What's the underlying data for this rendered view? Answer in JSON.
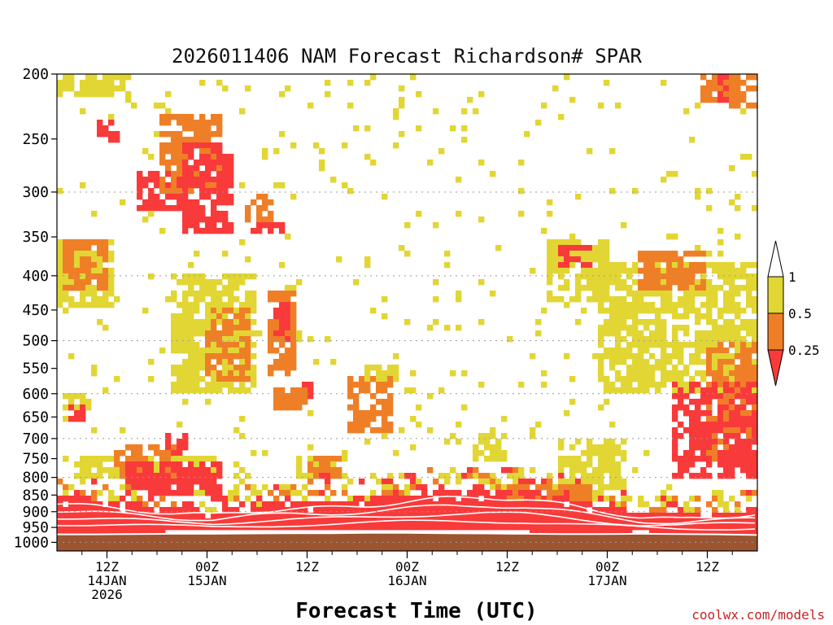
{
  "chart_data": {
    "type": "heatmap",
    "title": "2026011406 NAM Forecast Richardson# SPAR",
    "xlabel": "Forecast Time (UTC)",
    "ylabel": "",
    "y_axis": {
      "scale": "log-pressure",
      "units": "hPa",
      "range": [
        1030,
        200
      ],
      "ticks": [
        "200",
        "250",
        "300",
        "350",
        "400",
        "450",
        "500",
        "550",
        "600",
        "650",
        "700",
        "750",
        "800",
        "850",
        "900",
        "950",
        "1000"
      ],
      "gridlines": [
        "300",
        "400",
        "500",
        "600",
        "700",
        "800",
        "900",
        "1000"
      ]
    },
    "x_axis": {
      "range_hours": [
        0,
        84
      ],
      "ticks": [
        {
          "hour": 6,
          "line1": "12Z",
          "line2": "14JAN",
          "line3": "2026"
        },
        {
          "hour": 18,
          "line1": "00Z",
          "line2": "15JAN",
          "line3": ""
        },
        {
          "hour": 30,
          "line1": "12Z",
          "line2": "",
          "line3": ""
        },
        {
          "hour": 42,
          "line1": "00Z",
          "line2": "16JAN",
          "line3": ""
        },
        {
          "hour": 54,
          "line1": "12Z",
          "line2": "",
          "line3": ""
        },
        {
          "hour": 66,
          "line1": "00Z",
          "line2": "17JAN",
          "line3": ""
        },
        {
          "hour": 78,
          "line1": "12Z",
          "line2": "",
          "line3": ""
        }
      ]
    },
    "legend": {
      "position": "right",
      "levels": [
        "1",
        "0.5",
        "0.25"
      ],
      "bins": [
        {
          "range": "> 1",
          "color": "#ffffff"
        },
        {
          "range": "0.5 - 1",
          "color": "#e1d634"
        },
        {
          "range": "0.25 - 0.5",
          "color": "#ef7f27"
        },
        {
          "range": "< 0.25",
          "color": "#f93a3a"
        }
      ]
    },
    "ground_color": "#9c5530",
    "ground_top_hpa": [
      973,
      973,
      972,
      971,
      971,
      970,
      969,
      969,
      968,
      968,
      969,
      970,
      971,
      972,
      972,
      971,
      972,
      973,
      975
    ],
    "low_ri_top_hpa": [
      852,
      862,
      875,
      890,
      895,
      880,
      872,
      868,
      860,
      845,
      832,
      828,
      835,
      855,
      880,
      905,
      912,
      902,
      890
    ],
    "features": [
      {
        "p": [
          200,
          215
        ],
        "h": [
          0,
          8
        ],
        "ri": 0.75
      },
      {
        "p": [
          232,
          255
        ],
        "h": [
          4.5,
          7.5
        ],
        "ri": 0.1
      },
      {
        "p": [
          280,
          320
        ],
        "h": [
          9.5,
          16
        ],
        "ri": 0.1
      },
      {
        "p": [
          255,
          345
        ],
        "h": [
          15,
          21
        ],
        "ri": 0.1
      },
      {
        "p": [
          230,
          300
        ],
        "h": [
          12,
          20
        ],
        "ri": 0.4
      },
      {
        "p": [
          300,
          330
        ],
        "h": [
          22.5,
          26
        ],
        "ri": 0.4
      },
      {
        "p": [
          330,
          345
        ],
        "h": [
          23,
          27
        ],
        "ri": 0.1
      },
      {
        "p": [
          350,
          420
        ],
        "h": [
          0.5,
          6
        ],
        "ri": 0.4
      },
      {
        "p": [
          350,
          450
        ],
        "h": [
          0.2,
          7
        ],
        "ri": 0.75
      },
      {
        "p": [
          450,
          580
        ],
        "h": [
          18,
          23
        ],
        "ri": 0.4
      },
      {
        "p": [
          420,
          560
        ],
        "h": [
          25,
          29
        ],
        "ri": 0.4
      },
      {
        "p": [
          440,
          500
        ],
        "h": [
          26,
          28
        ],
        "ri": 0.1
      },
      {
        "p": [
          400,
          600
        ],
        "h": [
          14,
          24
        ],
        "ri": 0.75
      },
      {
        "p": [
          560,
          680
        ],
        "h": [
          35,
          40
        ],
        "ri": 0.4
      },
      {
        "p": [
          540,
          580
        ],
        "h": [
          37,
          41
        ],
        "ri": 0.75
      },
      {
        "p": [
          590,
          640
        ],
        "h": [
          26,
          30
        ],
        "ri": 0.4
      },
      {
        "p": [
          580,
          620
        ],
        "h": [
          29.5,
          31
        ],
        "ri": 0.1
      },
      {
        "p": [
          360,
          390
        ],
        "h": [
          60,
          64
        ],
        "ri": 0.1
      },
      {
        "p": [
          350,
          440
        ],
        "h": [
          59,
          66
        ],
        "ri": 0.75
      },
      {
        "p": [
          370,
          420
        ],
        "h": [
          70,
          78
        ],
        "ri": 0.4
      },
      {
        "p": [
          380,
          600
        ],
        "h": [
          65,
          84
        ],
        "ri": 0.75
      },
      {
        "p": [
          500,
          760
        ],
        "h": [
          78,
          84
        ],
        "ri": 0.4
      },
      {
        "p": [
          580,
          800
        ],
        "h": [
          74,
          84
        ],
        "ri": 0.1
      },
      {
        "p": [
          200,
          225
        ],
        "h": [
          77,
          84
        ],
        "ri": 0.4
      },
      {
        "p": [
          200,
          220
        ],
        "h": [
          79,
          80.5
        ],
        "ri": 0.1
      },
      {
        "p": [
          710,
          800
        ],
        "h": [
          7,
          14
        ],
        "ri": 0.4
      },
      {
        "p": [
          690,
          740
        ],
        "h": [
          13,
          16
        ],
        "ri": 0.1
      },
      {
        "p": [
          760,
          850
        ],
        "h": [
          8,
          20
        ],
        "ri": 0.1
      },
      {
        "p": [
          740,
          800
        ],
        "h": [
          2,
          20
        ],
        "ri": 0.75
      },
      {
        "p": [
          740,
          810
        ],
        "h": [
          29,
          35
        ],
        "ri": 0.75
      },
      {
        "p": [
          745,
          800
        ],
        "h": [
          30,
          34
        ],
        "ri": 0.4
      },
      {
        "p": [
          780,
          820
        ],
        "h": [
          31,
          33
        ],
        "ri": 0.1
      },
      {
        "p": [
          600,
          640
        ],
        "h": [
          1,
          4
        ],
        "ri": 0.75
      },
      {
        "p": [
          620,
          660
        ],
        "h": [
          1.5,
          3.5
        ],
        "ri": 0.1
      },
      {
        "p": [
          680,
          760
        ],
        "h": [
          50,
          54
        ],
        "ri": 0.75
      },
      {
        "p": [
          700,
          830
        ],
        "h": [
          60,
          68
        ],
        "ri": 0.75
      },
      {
        "p": [
          820,
          860
        ],
        "h": [
          54,
          64
        ],
        "ri": 0.4
      }
    ]
  },
  "footer": {
    "credit": "coolwx.com/models"
  }
}
